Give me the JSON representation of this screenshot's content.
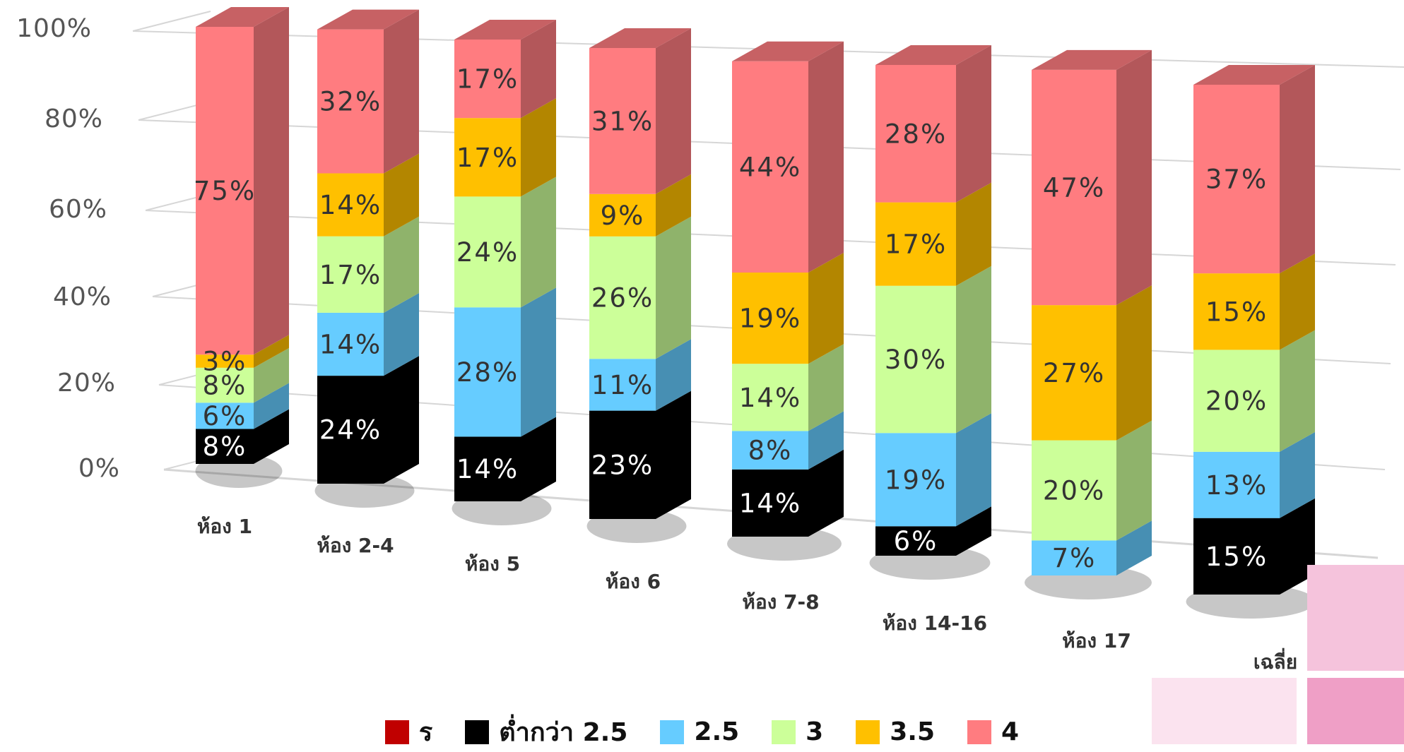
{
  "chart_data": {
    "type": "bar",
    "stacked": true,
    "percent_stacked": true,
    "three_d": true,
    "categories": [
      "ห้อง 1",
      "ห้อง 2-4",
      "ห้อง 5",
      "ห้อง 6",
      "ห้อง 7-8",
      "ห้อง 14-16",
      "ห้อง 17",
      "เฉลี่ย"
    ],
    "series": [
      {
        "name": "ร",
        "color": "#c00000",
        "values": [
          0,
          0,
          0,
          0,
          0,
          0,
          0,
          0
        ],
        "labels": [
          "",
          "",
          "",
          "",
          "",
          "",
          "",
          ""
        ]
      },
      {
        "name": "ต่ำกว่า 2.5",
        "color": "#000000",
        "values": [
          8,
          24,
          14,
          23,
          14,
          6,
          0,
          15
        ],
        "labels": [
          "8%",
          "24%",
          "14%",
          "23%",
          "14%",
          "6%",
          "",
          "15%"
        ]
      },
      {
        "name": "2.5",
        "color": "#66ccff",
        "values": [
          6,
          14,
          28,
          11,
          8,
          19,
          7,
          13
        ],
        "labels": [
          "6%",
          "14%",
          "28%",
          "11%",
          "8%",
          "19%",
          "7%",
          "13%"
        ]
      },
      {
        "name": "3",
        "color": "#ccff99",
        "values": [
          8,
          17,
          24,
          26,
          14,
          30,
          20,
          20
        ],
        "labels": [
          "8%",
          "17%",
          "24%",
          "26%",
          "14%",
          "30%",
          "20%",
          "20%"
        ]
      },
      {
        "name": "3.5",
        "color": "#ffc000",
        "values": [
          3,
          14,
          17,
          9,
          19,
          17,
          27,
          15
        ],
        "labels": [
          "3%",
          "14%",
          "17%",
          "9%",
          "19%",
          "17%",
          "27%",
          "15%"
        ]
      },
      {
        "name": "4",
        "color": "#ff7c80",
        "values": [
          75,
          32,
          17,
          31,
          44,
          28,
          47,
          37
        ],
        "labels": [
          "75%",
          "32%",
          "17%",
          "31%",
          "44%",
          "28%",
          "47%",
          "37%"
        ]
      }
    ],
    "y_ticks": [
      "0%",
      "20%",
      "40%",
      "60%",
      "80%",
      "100%"
    ],
    "ylim": [
      0,
      100
    ],
    "grid": true,
    "legend_position": "bottom",
    "title": "",
    "xlabel": "",
    "ylabel": ""
  },
  "legend": {
    "items": [
      {
        "label": "ร",
        "color": "#c00000"
      },
      {
        "label": "ต่ำกว่า 2.5",
        "color": "#000000"
      },
      {
        "label": "2.5",
        "color": "#66ccff"
      },
      {
        "label": "3",
        "color": "#ccff99"
      },
      {
        "label": "3.5",
        "color": "#ffc000"
      },
      {
        "label": "4",
        "color": "#ff7c80"
      }
    ]
  }
}
